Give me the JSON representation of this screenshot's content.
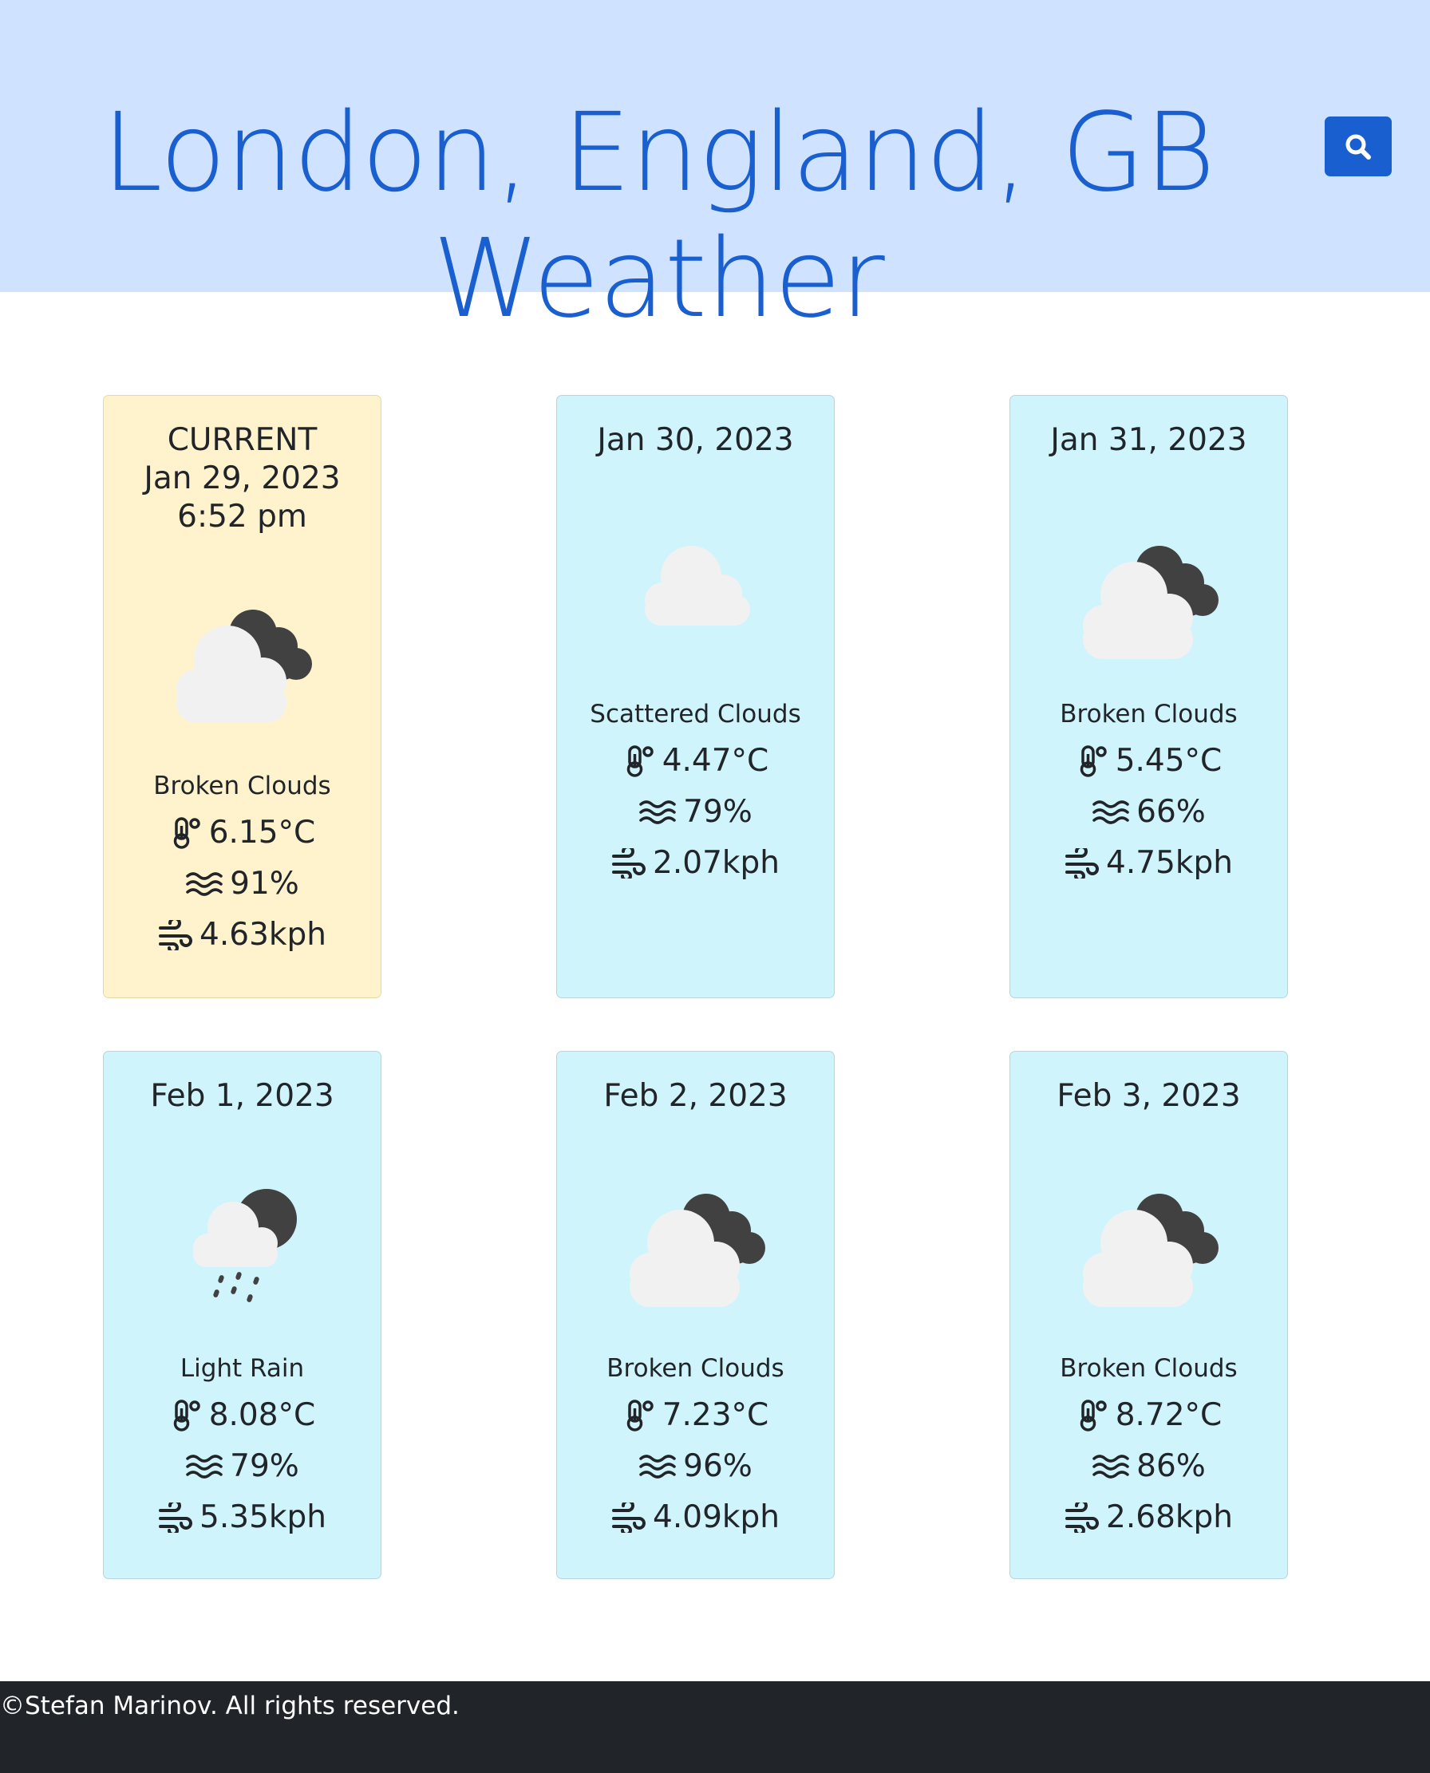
{
  "header": {
    "title_line1": "London, England, GB",
    "title_line2": "Weather",
    "search_icon": "search-icon",
    "background": "#cfe2ff",
    "accent": "#1a5fd0"
  },
  "cards": [
    {
      "label": "CURRENT\nJan 29, 2023\n6:52 pm",
      "icon": "broken-clouds-icon",
      "description": "Broken Clouds",
      "temperature": "6.15°C",
      "humidity": "91%",
      "wind": "4.63kph"
    },
    {
      "label": "Jan 30, 2023",
      "icon": "scattered-clouds-icon",
      "description": "Scattered Clouds",
      "temperature": "4.47°C",
      "humidity": "79%",
      "wind": "2.07kph"
    },
    {
      "label": "Jan 31, 2023",
      "icon": "broken-clouds-icon",
      "description": "Broken Clouds",
      "temperature": "5.45°C",
      "humidity": "66%",
      "wind": "4.75kph"
    },
    {
      "label": "Feb 1, 2023",
      "icon": "light-rain-icon",
      "description": "Light Rain",
      "temperature": "8.08°C",
      "humidity": "79%",
      "wind": "5.35kph"
    },
    {
      "label": "Feb 2, 2023",
      "icon": "broken-clouds-icon",
      "description": "Broken Clouds",
      "temperature": "7.23°C",
      "humidity": "96%",
      "wind": "4.09kph"
    },
    {
      "label": "Feb 3, 2023",
      "icon": "broken-clouds-icon",
      "description": "Broken Clouds",
      "temperature": "8.72°C",
      "humidity": "86%",
      "wind": "2.68kph"
    }
  ],
  "footer": {
    "text": "©Stefan Marinov. All rights reserved."
  },
  "colors": {
    "current_card": "#fff3cd",
    "forecast_card": "#cff4fc",
    "footer": "#212529"
  }
}
